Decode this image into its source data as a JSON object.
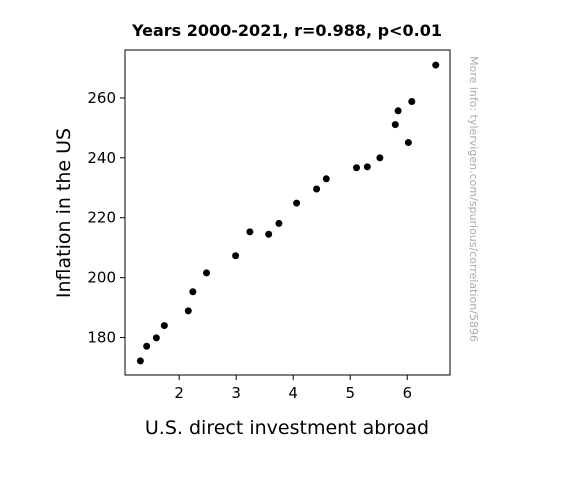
{
  "chart_data": {
    "type": "scatter",
    "title": "Years 2000-2021, r=0.988, p<0.01",
    "xlabel": "U.S. direct investment abroad",
    "ylabel": "Inflation in the US",
    "xlim": [
      1.05,
      6.75
    ],
    "ylim": [
      167.5,
      276.0
    ],
    "xticks": [
      2,
      3,
      4,
      5,
      6
    ],
    "yticks": [
      180,
      200,
      220,
      240,
      260
    ],
    "xtick_labels": [
      "2",
      "3",
      "4",
      "5",
      "6"
    ],
    "ytick_labels": [
      "180",
      "200",
      "220",
      "240",
      "260"
    ],
    "grid": false,
    "marker_color": "#000000",
    "points": [
      {
        "x": 1.32,
        "y": 172.2
      },
      {
        "x": 1.43,
        "y": 177.1
      },
      {
        "x": 1.6,
        "y": 179.9
      },
      {
        "x": 1.74,
        "y": 184.0
      },
      {
        "x": 2.16,
        "y": 188.9
      },
      {
        "x": 2.24,
        "y": 195.3
      },
      {
        "x": 2.48,
        "y": 201.6
      },
      {
        "x": 2.99,
        "y": 207.3
      },
      {
        "x": 3.24,
        "y": 215.3
      },
      {
        "x": 3.57,
        "y": 214.5
      },
      {
        "x": 3.75,
        "y": 218.1
      },
      {
        "x": 4.06,
        "y": 224.9
      },
      {
        "x": 4.41,
        "y": 229.6
      },
      {
        "x": 4.58,
        "y": 233.0
      },
      {
        "x": 5.11,
        "y": 236.7
      },
      {
        "x": 5.3,
        "y": 237.0
      },
      {
        "x": 5.52,
        "y": 240.0
      },
      {
        "x": 5.79,
        "y": 251.1
      },
      {
        "x": 5.84,
        "y": 255.7
      },
      {
        "x": 6.02,
        "y": 245.1
      },
      {
        "x": 6.08,
        "y": 258.8
      },
      {
        "x": 6.5,
        "y": 270.97
      }
    ]
  },
  "watermark": "More info: tylervigen.com/spurious/correlation/5896"
}
